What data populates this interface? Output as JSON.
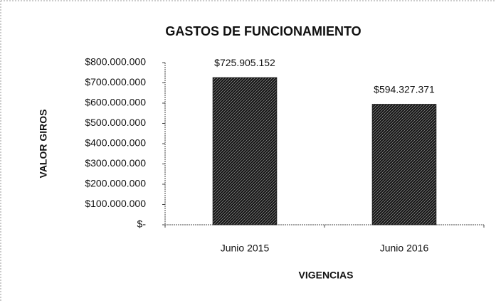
{
  "chart_data": {
    "type": "bar",
    "title": "GASTOS DE FUNCIONAMIENTO",
    "x_label": "VIGENCIAS",
    "y_label": "VALOR GIROS",
    "categories": [
      "Junio 2015",
      "Junio 2016"
    ],
    "values": [
      725905152,
      594327371
    ],
    "value_labels": [
      "$725.905.152",
      "$594.327.371"
    ],
    "color": "#222222",
    "ylim": [
      0,
      800000000
    ],
    "yticks": [
      {
        "value": 0,
        "label": "$-"
      },
      {
        "value": 100000000,
        "label": "$100.000.000"
      },
      {
        "value": 200000000,
        "label": "$200.000.000"
      },
      {
        "value": 300000000,
        "label": "$300.000.000"
      },
      {
        "value": 400000000,
        "label": "$400.000.000"
      },
      {
        "value": 500000000,
        "label": "$500.000.000"
      },
      {
        "value": 600000000,
        "label": "$600.000.000"
      },
      {
        "value": 700000000,
        "label": "$700.000.000"
      },
      {
        "value": 800000000,
        "label": "$800.000.000"
      }
    ],
    "grid": false
  }
}
